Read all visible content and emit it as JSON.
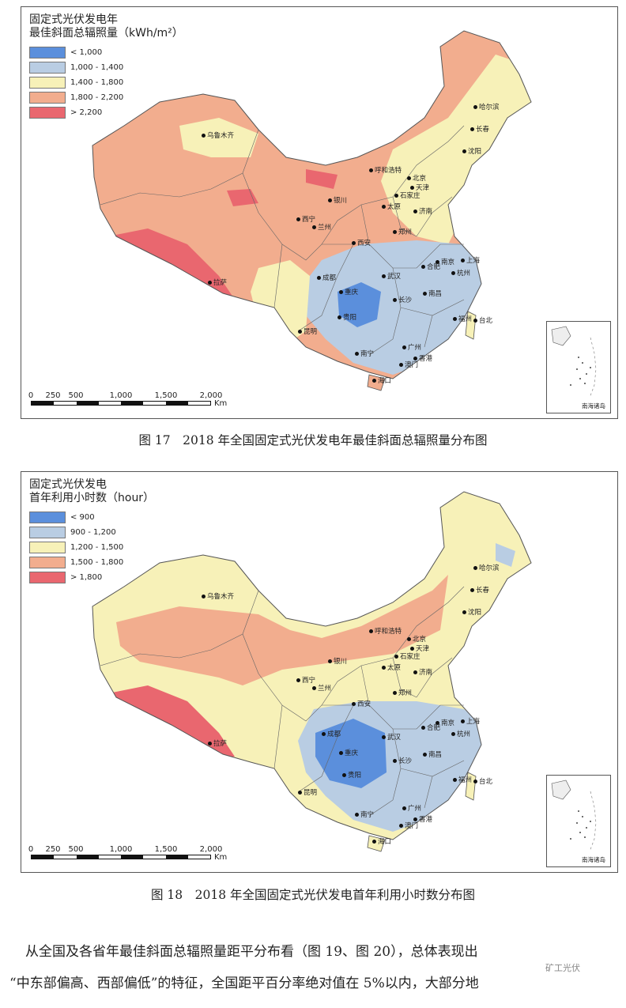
{
  "map1": {
    "title_line1": "固定式光伏发电年",
    "title_line2": "最佳斜面总辐照量（kWh/m²）",
    "legend": [
      {
        "label": "< 1,000",
        "color": "#5b8fdc"
      },
      {
        "label": "1,000 - 1,400",
        "color": "#b9cde3"
      },
      {
        "label": "1,400 - 1,800",
        "color": "#f7f1b8"
      },
      {
        "label": "1,800 - 2,200",
        "color": "#f2ad8e"
      },
      {
        "label": "> 2,200",
        "color": "#e9676f"
      }
    ],
    "caption": "图 17　2018 年全国固定式光伏发电年最佳斜面总辐照量分布图"
  },
  "map2": {
    "title_line1": "固定式光伏发电",
    "title_line2": "首年利用小时数（hour）",
    "legend": [
      {
        "label": "< 900",
        "color": "#5b8fdc"
      },
      {
        "label": "900 - 1,200",
        "color": "#b9cde3"
      },
      {
        "label": "1,200 - 1,500",
        "color": "#f7f1b8"
      },
      {
        "label": "1,500 - 1,800",
        "color": "#f2ad8e"
      },
      {
        "label": "> 1,800",
        "color": "#e9676f"
      }
    ],
    "caption": "图 18　2018 年全国固定式光伏发电首年利用小时数分布图"
  },
  "scale": {
    "ticks": [
      "0",
      "250",
      "500",
      "1,000",
      "1,500",
      "2,000"
    ],
    "unit": "Km"
  },
  "inset_label": "南海诸岛",
  "cities": [
    "乌鲁木齐",
    "哈尔滨",
    "长春",
    "沈阳",
    "呼和浩特",
    "北京",
    "天津",
    "银川",
    "石家庄",
    "太原",
    "济南",
    "西宁",
    "兰州",
    "郑州",
    "西安",
    "南京",
    "合肥",
    "上海",
    "杭州",
    "成都",
    "武汉",
    "重庆",
    "拉萨",
    "长沙",
    "南昌",
    "贵阳",
    "福州",
    "台北",
    "昆明",
    "南宁",
    "广州",
    "香港",
    "澳门",
    "海口"
  ],
  "paragraph_line1": "从全国及各省年最佳斜面总辐照量距平分布看（图 19、图 20），总体表现出",
  "paragraph_line2": "“中东部偏高、西部偏低”的特征，全国距平百分率绝对值在 5%以内，大部分地",
  "watermark": "矿工光伏"
}
